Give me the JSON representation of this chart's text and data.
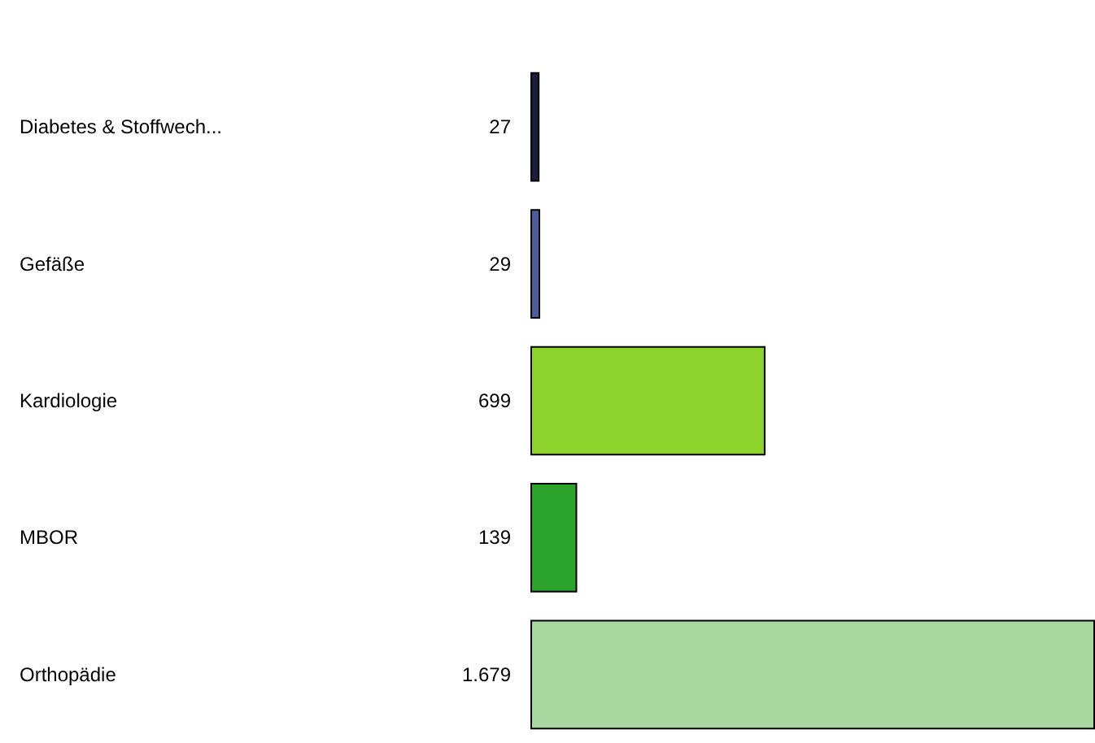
{
  "chart_data": {
    "type": "bar",
    "orientation": "horizontal",
    "categories": [
      "Diabetes & Stoffwech...",
      "Gefäße",
      "Kardiologie",
      "MBOR",
      "Orthopädie"
    ],
    "values": [
      27,
      29,
      699,
      139,
      1679
    ],
    "value_labels": [
      "27",
      "29",
      "699",
      "139",
      "1.679"
    ],
    "colors": [
      "#1c1c3c",
      "#4c5c9c",
      "#8cd42c",
      "#2ca42c",
      "#a8d8a0"
    ]
  }
}
